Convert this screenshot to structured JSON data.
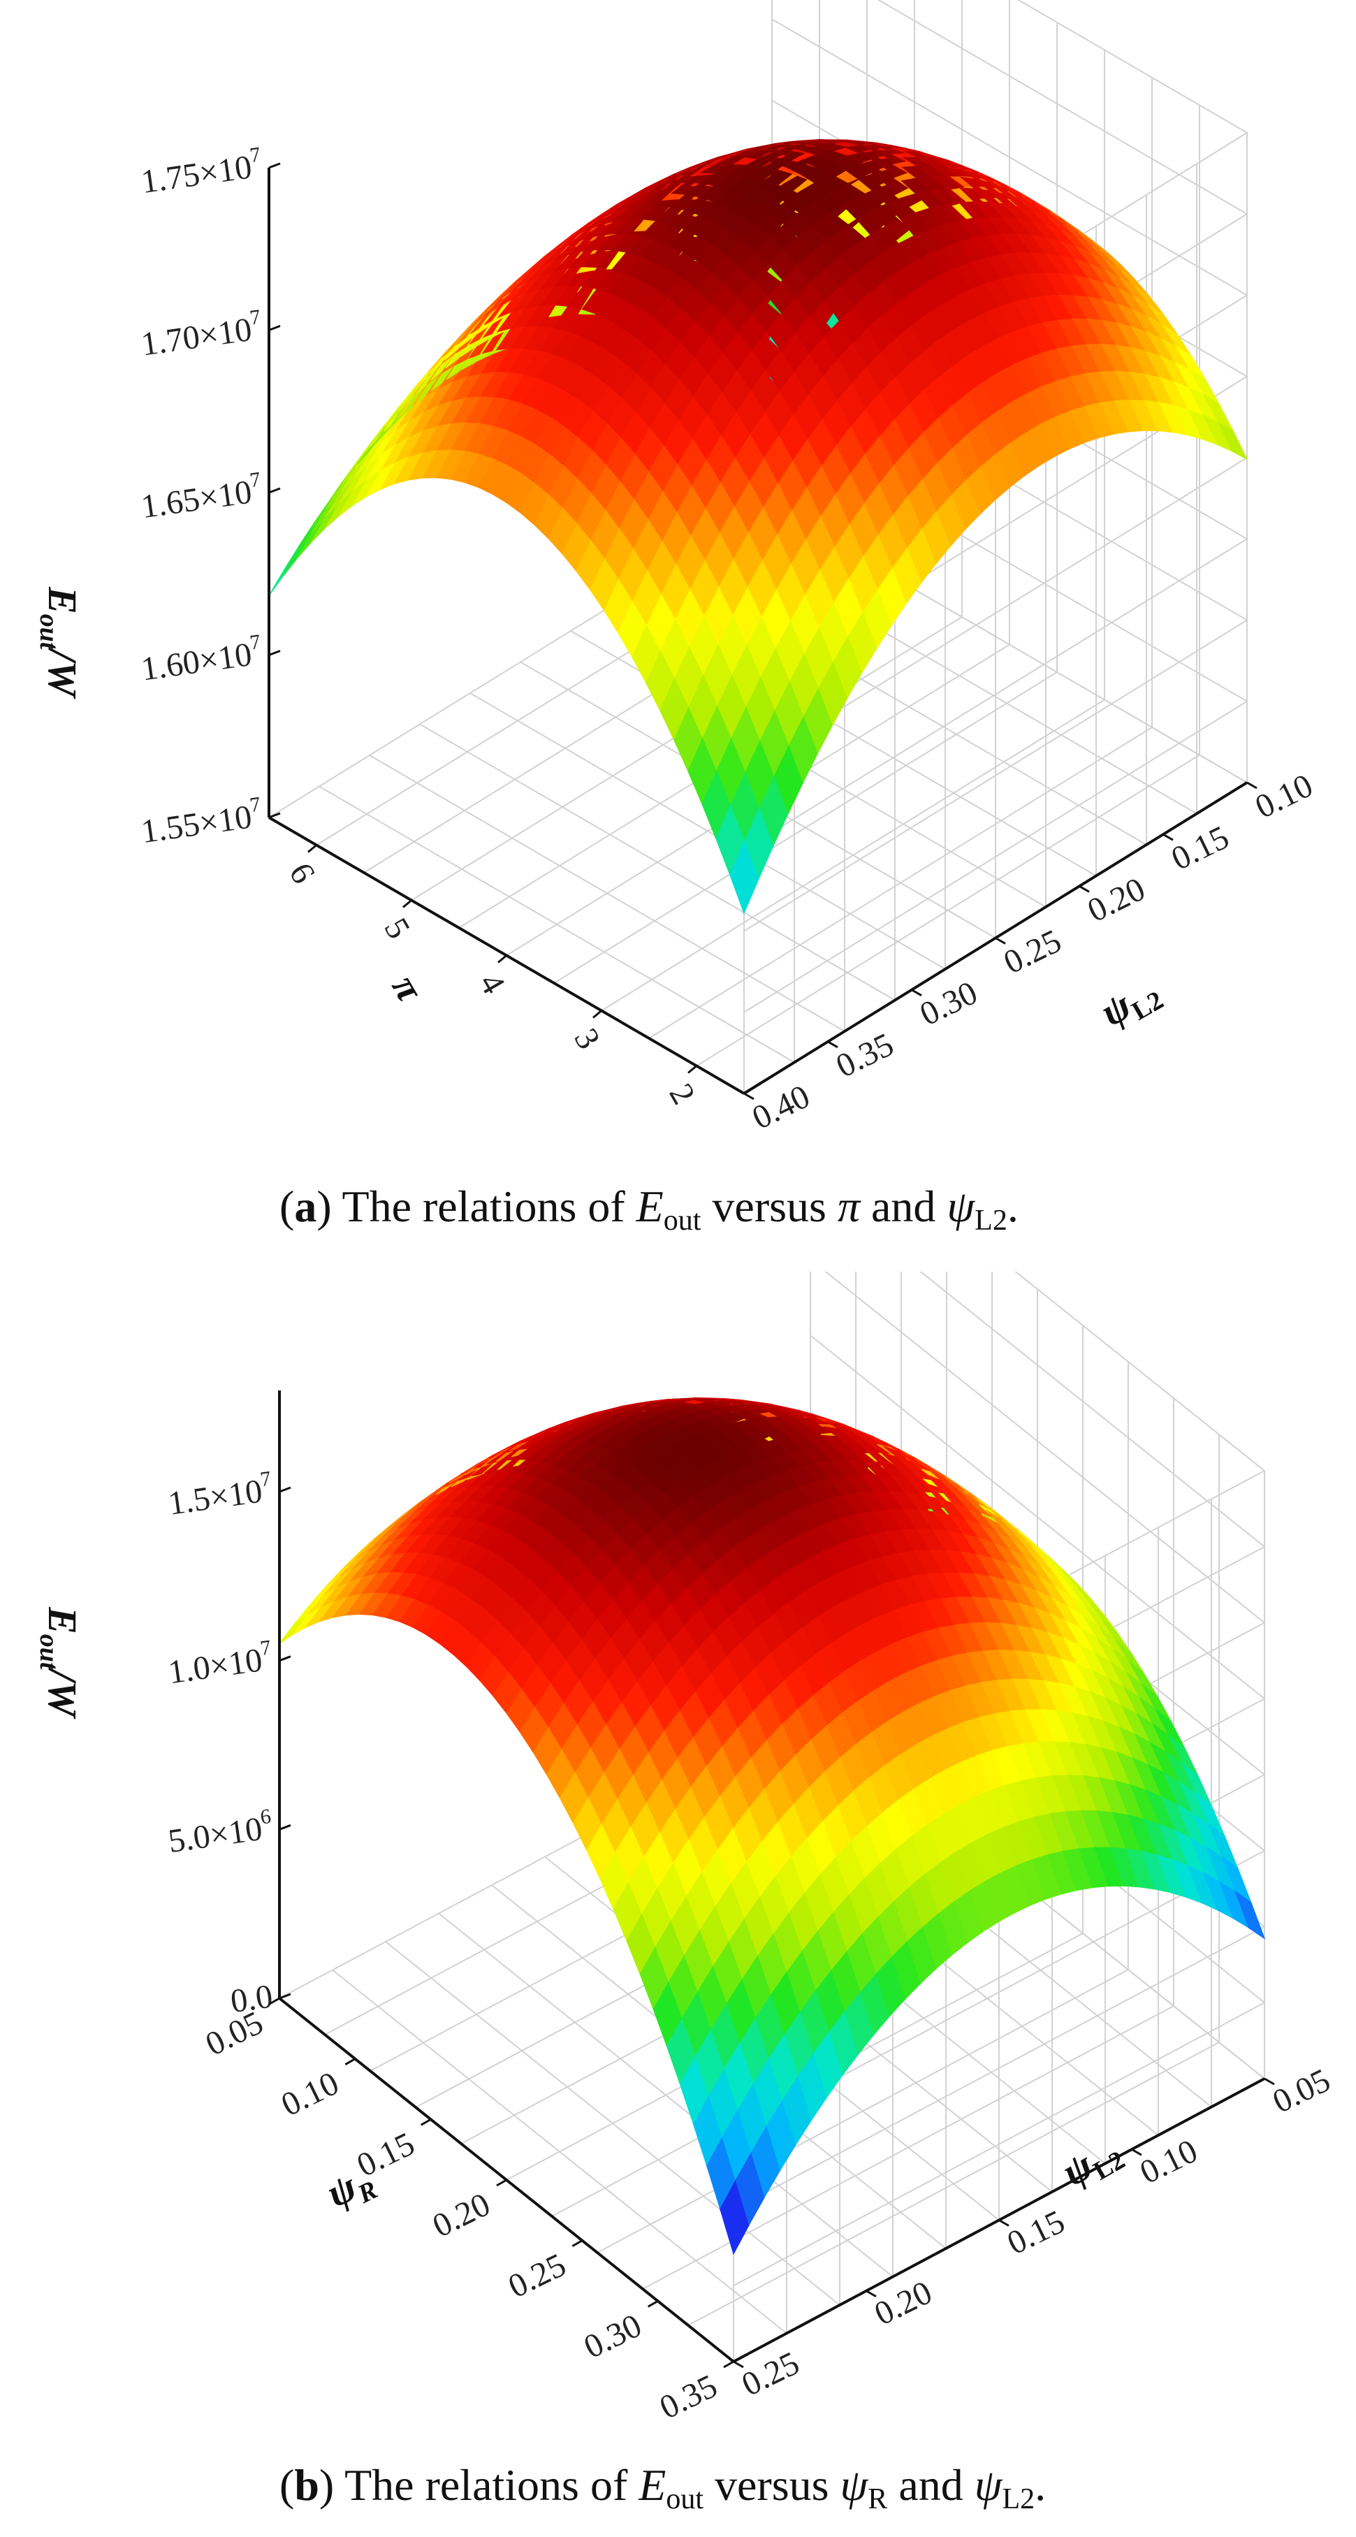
{
  "chart_data": [
    {
      "type": "surface",
      "panel_label": "a",
      "caption_text": "The relations of",
      "caption_y": "E",
      "caption_y_sub": "out",
      "caption_versus": "versus",
      "caption_x1": "π",
      "caption_x1_sub": "",
      "caption_and": "and",
      "caption_x2": "ψ",
      "caption_x2_sub": "L2",
      "zlabel": "E",
      "zlabel_sub": "out",
      "zlabel_unit": "/W",
      "xlabel": "π",
      "xlabel_sub": "",
      "ylabel": "ψ",
      "ylabel_sub": "L2",
      "x_ticks": [
        "2",
        "3",
        "4",
        "5",
        "6"
      ],
      "y_ticks": [
        "0.10",
        "0.15",
        "0.20",
        "0.25",
        "0.30",
        "0.35",
        "0.40"
      ],
      "z_ticks": [
        {
          "mantissa": "1.55×10",
          "exp": "7"
        },
        {
          "mantissa": "1.60×10",
          "exp": "7"
        },
        {
          "mantissa": "1.65×10",
          "exp": "7"
        },
        {
          "mantissa": "1.70×10",
          "exp": "7"
        },
        {
          "mantissa": "1.75×10",
          "exp": "7"
        }
      ],
      "xlim": [
        1.5,
        6.5
      ],
      "ylim": [
        0.1,
        0.4
      ],
      "zlim": [
        15500000,
        17500000
      ],
      "surface_peak": {
        "x": 4.3,
        "y": 0.25,
        "z": 17450000
      },
      "colormap": [
        "#7a1fdc",
        "#1b2bf0",
        "#00b4ff",
        "#00e6d0",
        "#22e61f",
        "#b6ef00",
        "#ffff00",
        "#ff9900",
        "#ff1a00",
        "#cc0000",
        "#6a0000"
      ]
    },
    {
      "type": "surface",
      "panel_label": "b",
      "caption_text": "The relations of",
      "caption_y": "E",
      "caption_y_sub": "out",
      "caption_versus": "versus",
      "caption_x1": "ψ",
      "caption_x1_sub": "R",
      "caption_and": "and",
      "caption_x2": "ψ",
      "caption_x2_sub": "L2",
      "zlabel": "E",
      "zlabel_sub": "out",
      "zlabel_unit": "/W",
      "xlabel": "ψ",
      "xlabel_sub": "R",
      "ylabel": "ψ",
      "ylabel_sub": "L2",
      "x_ticks": [
        "0.05",
        "0.10",
        "0.15",
        "0.20",
        "0.25",
        "0.30",
        "0.35"
      ],
      "y_ticks": [
        "0.05",
        "0.10",
        "0.15",
        "0.20",
        "0.25"
      ],
      "z_ticks": [
        {
          "mantissa": "0.0",
          "exp": ""
        },
        {
          "mantissa": "5.0×10",
          "exp": "6"
        },
        {
          "mantissa": "1.0×10",
          "exp": "7"
        },
        {
          "mantissa": "1.5×10",
          "exp": "7"
        }
      ],
      "xlim": [
        0.05,
        0.35
      ],
      "ylim": [
        0.05,
        0.25
      ],
      "zlim": [
        0,
        18000000
      ],
      "surface_peak": {
        "x": 0.18,
        "y": 0.17,
        "z": 17500000
      },
      "colormap": [
        "#7a1fdc",
        "#1b2bf0",
        "#00b4ff",
        "#00e6d0",
        "#22e61f",
        "#b6ef00",
        "#ffff00",
        "#ff9900",
        "#ff1a00",
        "#cc0000",
        "#6a0000"
      ]
    }
  ]
}
